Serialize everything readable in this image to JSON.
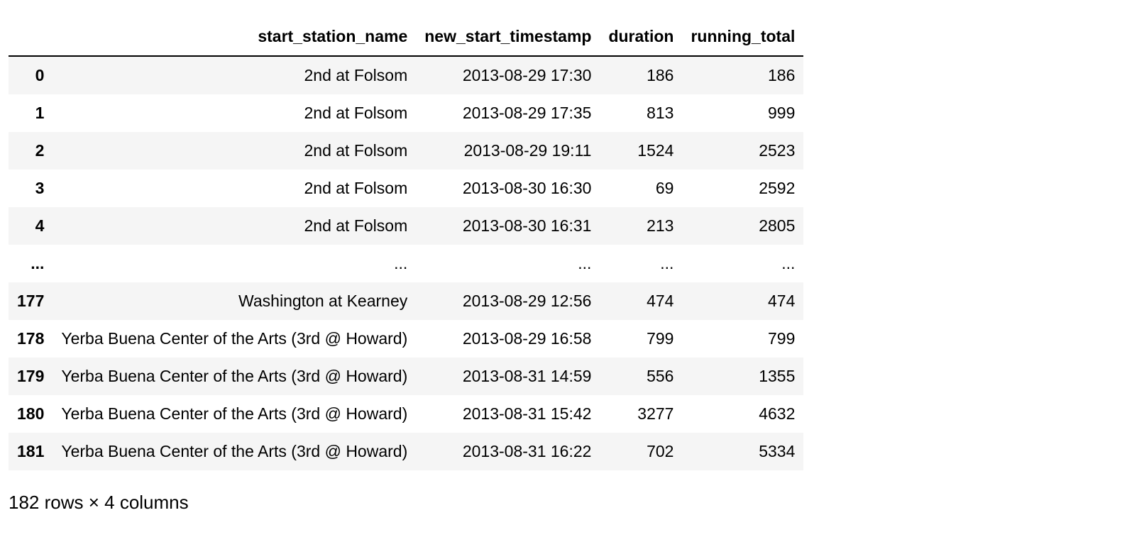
{
  "table": {
    "index_header": "",
    "columns": [
      "start_station_name",
      "new_start_timestamp",
      "duration",
      "running_total"
    ],
    "rows": [
      {
        "index": "0",
        "cells": [
          "2nd at Folsom",
          "2013-08-29 17:30",
          "186",
          "186"
        ]
      },
      {
        "index": "1",
        "cells": [
          "2nd at Folsom",
          "2013-08-29 17:35",
          "813",
          "999"
        ]
      },
      {
        "index": "2",
        "cells": [
          "2nd at Folsom",
          "2013-08-29 19:11",
          "1524",
          "2523"
        ]
      },
      {
        "index": "3",
        "cells": [
          "2nd at Folsom",
          "2013-08-30 16:30",
          "69",
          "2592"
        ]
      },
      {
        "index": "4",
        "cells": [
          "2nd at Folsom",
          "2013-08-30 16:31",
          "213",
          "2805"
        ]
      },
      {
        "index": "...",
        "cells": [
          "...",
          "...",
          "...",
          "..."
        ]
      },
      {
        "index": "177",
        "cells": [
          "Washington at Kearney",
          "2013-08-29 12:56",
          "474",
          "474"
        ]
      },
      {
        "index": "178",
        "cells": [
          "Yerba Buena Center of the Arts (3rd @ Howard)",
          "2013-08-29 16:58",
          "799",
          "799"
        ]
      },
      {
        "index": "179",
        "cells": [
          "Yerba Buena Center of the Arts (3rd @ Howard)",
          "2013-08-31 14:59",
          "556",
          "1355"
        ]
      },
      {
        "index": "180",
        "cells": [
          "Yerba Buena Center of the Arts (3rd @ Howard)",
          "2013-08-31 15:42",
          "3277",
          "4632"
        ]
      },
      {
        "index": "181",
        "cells": [
          "Yerba Buena Center of the Arts (3rd @ Howard)",
          "2013-08-31 16:22",
          "702",
          "5334"
        ]
      }
    ]
  },
  "summary": "182 rows × 4 columns"
}
